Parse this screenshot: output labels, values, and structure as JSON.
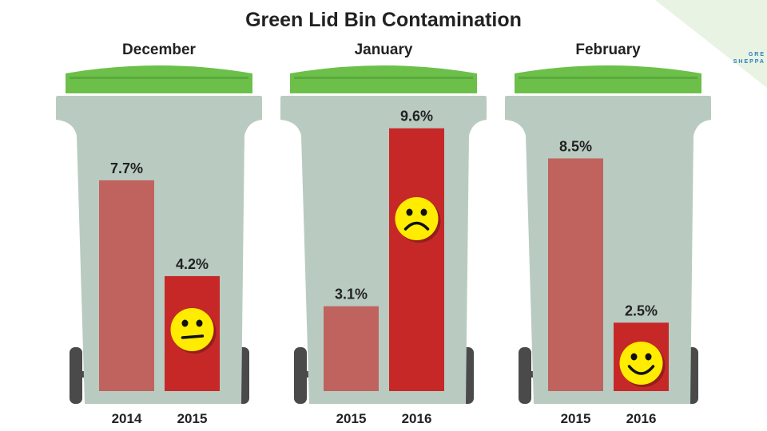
{
  "chart_data": {
    "type": "bar",
    "title": "Green Lid Bin Contamination",
    "unit": "%",
    "ylim": [
      0,
      10
    ],
    "grid": false,
    "groups": [
      {
        "month": "December",
        "categories": [
          "2014",
          "2015"
        ],
        "values": [
          7.7,
          4.2
        ],
        "labels": [
          "7.7%",
          "4.2%"
        ],
        "face": "neutral"
      },
      {
        "month": "January",
        "categories": [
          "2015",
          "2016"
        ],
        "values": [
          3.1,
          9.6
        ],
        "labels": [
          "3.1%",
          "9.6%"
        ],
        "face": "sad"
      },
      {
        "month": "February",
        "categories": [
          "2015",
          "2016"
        ],
        "values": [
          8.5,
          2.5
        ],
        "labels": [
          "8.5%",
          "2.5%"
        ],
        "face": "happy"
      }
    ],
    "colors": {
      "previous_year": "#c0635e",
      "current_year": "#c62828",
      "lid": "#6cc04a",
      "bin": "#b9cbc0",
      "wheel": "#4a4a4a",
      "face": "#ffec00"
    }
  },
  "logo": {
    "line1": "GRE",
    "line2": "SHEPPA"
  }
}
